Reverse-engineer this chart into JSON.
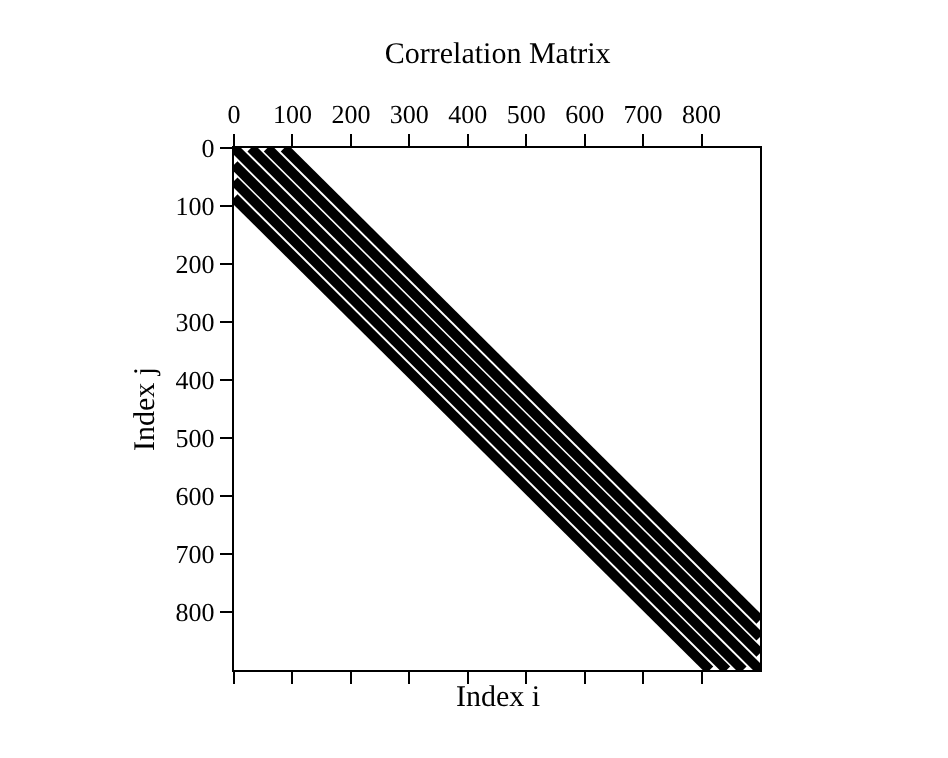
{
  "chart_data": {
    "type": "line",
    "title": "Correlation Matrix",
    "xlabel": "Index i",
    "ylabel": "Index j",
    "xlim": [
      0,
      900
    ],
    "ylim": [
      900,
      0
    ],
    "xticks": [
      0,
      100,
      200,
      300,
      400,
      500,
      600,
      700,
      800
    ],
    "yticks": [
      0,
      100,
      200,
      300,
      400,
      500,
      600,
      700,
      800
    ],
    "grid": false,
    "marker": "none",
    "line_style": "solid",
    "series": [
      {
        "color": "#000000",
        "x": [
          86,
          900
        ],
        "values": [
          0,
          814
        ]
      },
      {
        "color": "#000000",
        "x": [
          57,
          900
        ],
        "values": [
          0,
          843
        ]
      },
      {
        "color": "#000000",
        "x": [
          29,
          900
        ],
        "values": [
          0,
          871
        ]
      },
      {
        "color": "#000000",
        "x": [
          0,
          900
        ],
        "values": [
          0,
          900
        ]
      },
      {
        "color": "#000000",
        "x": [
          0,
          871
        ],
        "values": [
          29,
          900
        ]
      },
      {
        "color": "#000000",
        "x": [
          0,
          843
        ],
        "values": [
          57,
          900
        ]
      },
      {
        "color": "#000000",
        "x": [
          0,
          814
        ],
        "values": [
          86,
          900
        ]
      }
    ]
  }
}
